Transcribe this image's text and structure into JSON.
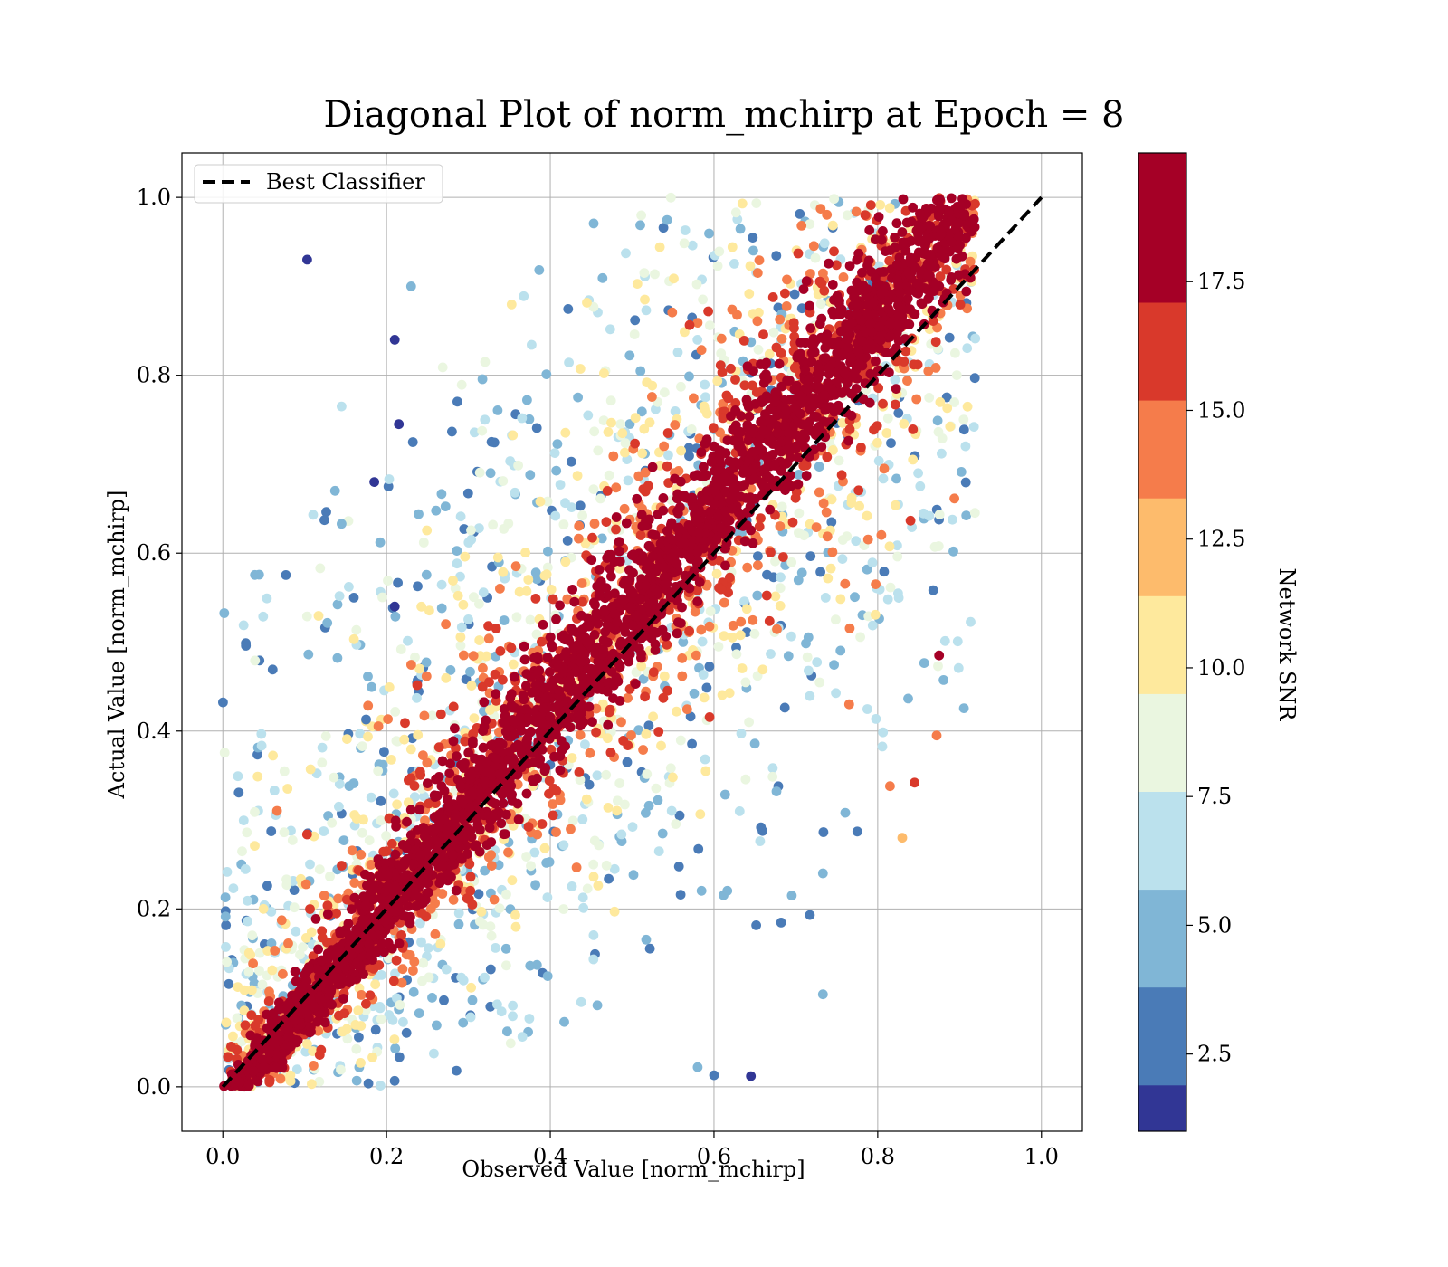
{
  "chart_data": {
    "type": "scatter",
    "title": "Diagonal Plot of norm_mchirp at Epoch = 8",
    "xlabel": "Observed Value [norm_mchirp]",
    "ylabel": "Actual Value [norm_mchirp]",
    "xlim": [
      -0.05,
      1.05
    ],
    "ylim": [
      -0.05,
      1.05
    ],
    "xticks": [
      "0.0",
      "0.2",
      "0.4",
      "0.6",
      "0.8",
      "1.0"
    ],
    "yticks": [
      "0.0",
      "0.2",
      "0.4",
      "0.6",
      "0.8",
      "1.0"
    ],
    "xtick_values": [
      0.0,
      0.2,
      0.4,
      0.6,
      0.8,
      1.0
    ],
    "ytick_values": [
      0.0,
      0.2,
      0.4,
      0.6,
      0.8,
      1.0
    ],
    "grid": true,
    "legend": {
      "placement": "top-left",
      "entries": [
        "Best Classifier"
      ]
    },
    "reference_line": {
      "name": "Best Classifier",
      "style": "dashed",
      "color": "#000000",
      "x": [
        0.0,
        1.0
      ],
      "y": [
        0.0,
        1.0
      ]
    },
    "colorbar": {
      "label": "Network SNR",
      "range": [
        1.0,
        20.0
      ],
      "ticks": [
        "2.5",
        "5.0",
        "7.5",
        "10.0",
        "12.5",
        "15.0",
        "17.5"
      ],
      "tick_values": [
        2.5,
        5.0,
        7.5,
        10.0,
        12.5,
        15.0,
        17.5
      ],
      "bins": [
        {
          "from": 1.0,
          "to": 1.9,
          "color": "#313695"
        },
        {
          "from": 1.9,
          "to": 3.8,
          "color": "#4a7bb7"
        },
        {
          "from": 3.8,
          "to": 5.7,
          "color": "#80b6d6"
        },
        {
          "from": 5.7,
          "to": 7.6,
          "color": "#bbe1ed"
        },
        {
          "from": 7.6,
          "to": 9.5,
          "color": "#eaf6e0"
        },
        {
          "from": 9.5,
          "to": 11.4,
          "color": "#fee99d"
        },
        {
          "from": 11.4,
          "to": 13.3,
          "color": "#fdbb6c"
        },
        {
          "from": 13.3,
          "to": 15.2,
          "color": "#f57c4b"
        },
        {
          "from": 15.2,
          "to": 17.1,
          "color": "#d9392b"
        },
        {
          "from": 17.1,
          "to": 20.0,
          "color": "#a50026"
        }
      ]
    },
    "series": [
      {
        "name": "norm_mchirp",
        "description_regions": [
          {
            "snr": 18.5,
            "x": [
              0.02,
              0.9
            ],
            "y": [
              0.0,
              1.0
            ],
            "spread": 0.035,
            "count": 2600
          },
          {
            "snr": 16.0,
            "x": [
              0.02,
              0.9
            ],
            "y": [
              0.0,
              1.0
            ],
            "spread": 0.07,
            "count": 700
          },
          {
            "snr": 14.0,
            "x": [
              0.03,
              0.9
            ],
            "y": [
              0.0,
              1.0
            ],
            "spread": 0.1,
            "count": 500
          },
          {
            "snr": 10.5,
            "x": [
              0.05,
              0.85
            ],
            "y": [
              0.0,
              1.0
            ],
            "spread": 0.14,
            "count": 500
          },
          {
            "snr": 8.5,
            "x": [
              0.05,
              0.85
            ],
            "y": [
              0.0,
              1.0
            ],
            "spread": 0.2,
            "count": 450
          },
          {
            "snr": 6.5,
            "x": [
              0.1,
              0.75
            ],
            "y": [
              0.0,
              1.0
            ],
            "spread": 0.28,
            "count": 450
          },
          {
            "snr": 4.5,
            "x": [
              0.25,
              0.6
            ],
            "y": [
              0.0,
              1.0
            ],
            "spread": 0.38,
            "count": 420
          },
          {
            "snr": 2.0,
            "x": [
              0.3,
              0.55
            ],
            "y": [
              0.0,
              1.0
            ],
            "spread": 0.48,
            "count": 320
          }
        ]
      }
    ],
    "outliers": [
      {
        "x": 0.103,
        "y": 0.93,
        "snr": 1.5
      },
      {
        "x": 0.145,
        "y": 0.765,
        "snr": 6.5
      },
      {
        "x": 0.145,
        "y": 0.633,
        "snr": 5.0
      },
      {
        "x": 0.21,
        "y": 0.84,
        "snr": 1.5
      },
      {
        "x": 0.215,
        "y": 0.745,
        "snr": 1.5
      },
      {
        "x": 0.185,
        "y": 0.68,
        "snr": 1.5
      },
      {
        "x": 0.23,
        "y": 0.9,
        "snr": 5.0
      },
      {
        "x": 0.16,
        "y": 0.55,
        "snr": 3.0
      },
      {
        "x": 0.175,
        "y": 0.413,
        "snr": 3.0
      },
      {
        "x": 0.21,
        "y": 0.54,
        "snr": 1.5
      },
      {
        "x": 0.875,
        "y": 0.485,
        "snr": 18.5
      },
      {
        "x": 0.872,
        "y": 0.395,
        "snr": 15.0
      },
      {
        "x": 0.845,
        "y": 0.342,
        "snr": 16.5
      },
      {
        "x": 0.775,
        "y": 0.287,
        "snr": 3.0
      },
      {
        "x": 0.733,
        "y": 0.24,
        "snr": 5.0
      },
      {
        "x": 0.733,
        "y": 0.104,
        "snr": 5.0
      },
      {
        "x": 0.695,
        "y": 0.215,
        "snr": 5.0
      },
      {
        "x": 0.6,
        "y": 0.013,
        "snr": 3.0
      },
      {
        "x": 0.645,
        "y": 0.012,
        "snr": 1.5
      },
      {
        "x": 0.58,
        "y": 0.022,
        "snr": 5.0
      },
      {
        "x": 0.815,
        "y": 0.338,
        "snr": 15.0
      },
      {
        "x": 0.83,
        "y": 0.28,
        "snr": 12.0
      }
    ]
  }
}
